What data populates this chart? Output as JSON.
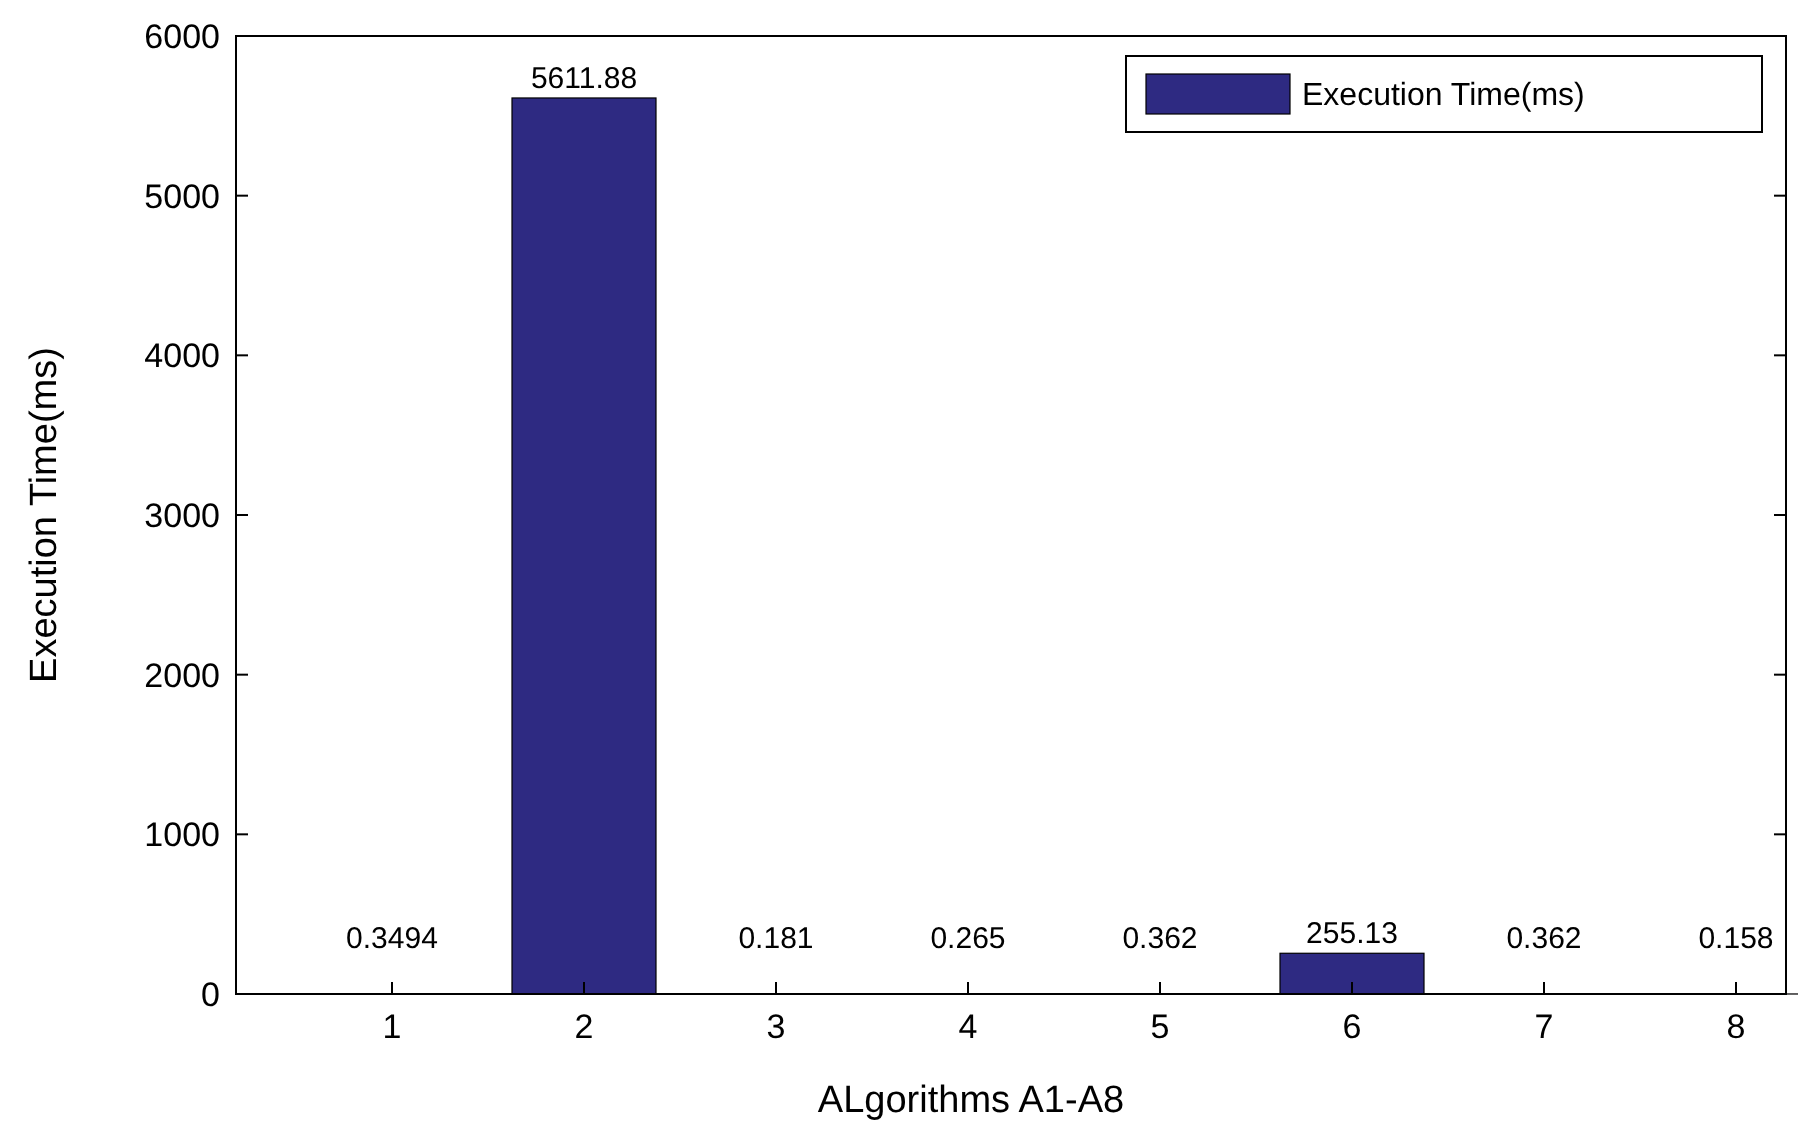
{
  "chart_data": {
    "type": "bar",
    "xlabel": "ALgorithms A1-A8",
    "ylabel": "Execution Time(ms)",
    "categories": [
      "1",
      "2",
      "3",
      "4",
      "5",
      "6",
      "7",
      "8"
    ],
    "series": [
      {
        "name": "Execution Time(ms)",
        "color": "#2e2a82",
        "values": [
          0.3494,
          5611.88,
          0.181,
          0.265,
          0.362,
          255.13,
          0.362,
          0.158
        ]
      }
    ],
    "ylim": [
      0,
      6000
    ],
    "yticks": [
      0,
      1000,
      2000,
      3000,
      4000,
      5000,
      6000
    ],
    "data_labels": true,
    "legend": "top right",
    "grid": false
  }
}
